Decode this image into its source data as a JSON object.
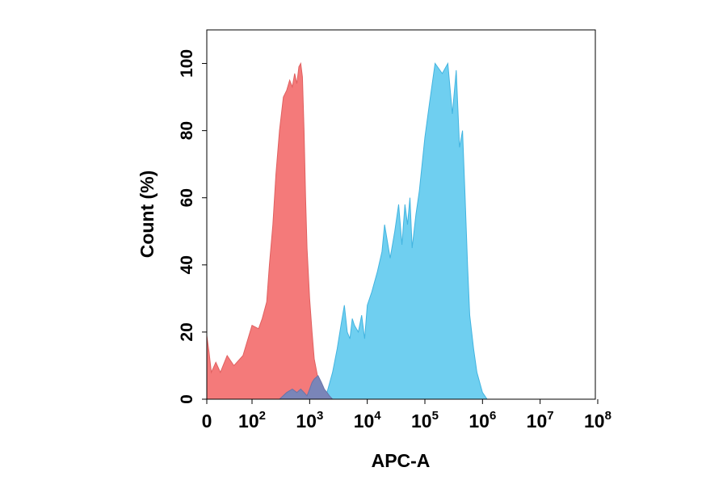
{
  "chart_data": {
    "type": "area",
    "title": "",
    "xlabel": "APC-A",
    "ylabel": "Count  (%)",
    "xscale": "biexponential",
    "xlim": [
      0,
      100000000
    ],
    "ylim": [
      0,
      110
    ],
    "grid": false,
    "legend": "none",
    "x_ticks": [
      {
        "base": "0",
        "exp": ""
      },
      {
        "base": "10",
        "exp": "2"
      },
      {
        "base": "10",
        "exp": "3"
      },
      {
        "base": "10",
        "exp": "4"
      },
      {
        "base": "10",
        "exp": "5"
      },
      {
        "base": "10",
        "exp": "6"
      },
      {
        "base": "10",
        "exp": "7"
      },
      {
        "base": "10",
        "exp": "8"
      }
    ],
    "y_ticks": [
      "0",
      "20",
      "40",
      "60",
      "80",
      "100"
    ],
    "series": [
      {
        "color": "#f47a7a",
        "stroke": "#e06060",
        "x": [
          0,
          5,
          10,
          20,
          30,
          45,
          60,
          80,
          100,
          130,
          150,
          180,
          200,
          230,
          260,
          300,
          350,
          400,
          450,
          500,
          550,
          600,
          650,
          700,
          750,
          800,
          850,
          900,
          1000,
          1100,
          1200,
          1400,
          1600,
          1800,
          2000
        ],
        "y": [
          19,
          14,
          8,
          11,
          8,
          13,
          10,
          13,
          22,
          21,
          24,
          29,
          40,
          52,
          67,
          80,
          90,
          92,
          95,
          93,
          97,
          94,
          99,
          100,
          96,
          80,
          60,
          45,
          30,
          20,
          12,
          6,
          3,
          1,
          0
        ]
      },
      {
        "color": "#6fcff0",
        "stroke": "#42b4e0",
        "x": [
          1500,
          2000,
          2500,
          3000,
          3500,
          4000,
          4500,
          5000,
          5500,
          6000,
          7000,
          8000,
          9000,
          10000,
          12000,
          15000,
          18000,
          20000,
          25000,
          30000,
          35000,
          40000,
          45000,
          50000,
          55000,
          60000,
          70000,
          80000,
          100000,
          120000,
          150000,
          200000,
          250000,
          300000,
          350000,
          400000,
          450000,
          500000,
          550000,
          600000,
          700000,
          800000,
          1000000,
          1200000
        ],
        "y": [
          0,
          2,
          8,
          15,
          22,
          28,
          20,
          18,
          24,
          22,
          20,
          25,
          18,
          28,
          32,
          38,
          44,
          52,
          42,
          50,
          58,
          46,
          58,
          52,
          60,
          45,
          55,
          62,
          78,
          88,
          100,
          97,
          100,
          85,
          98,
          75,
          80,
          60,
          40,
          25,
          15,
          8,
          2,
          0
        ]
      },
      {
        "color": "#7a85b8",
        "stroke": "#6a74a8",
        "x": [
          300,
          400,
          500,
          600,
          700,
          800,
          900,
          1000,
          1100,
          1200,
          1400,
          1600,
          1800,
          2000,
          2200,
          2500
        ],
        "y": [
          0,
          2,
          3,
          2,
          3,
          2,
          1,
          3,
          5,
          6,
          7,
          5,
          3,
          2,
          1,
          0
        ]
      }
    ]
  }
}
